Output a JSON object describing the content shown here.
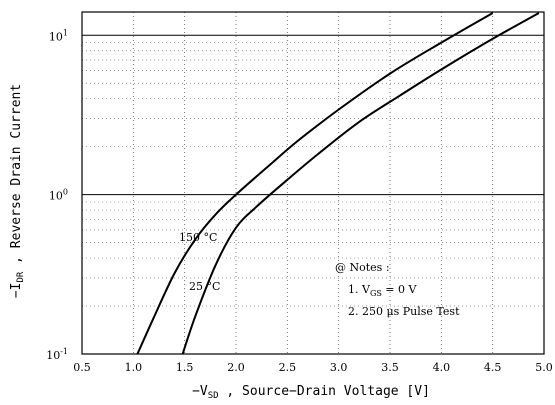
{
  "chart_data": {
    "type": "line",
    "xlabel": {
      "prefix": "−V",
      "sub": "SD",
      "suffix": " , Source−Drain Voltage   [V]"
    },
    "ylabel": {
      "prefix": "−I",
      "sub": "DR",
      "suffix": " , Reverse Drain Current"
    },
    "xlim": [
      0.5,
      5.0
    ],
    "ylim": [
      0.1,
      14
    ],
    "yscale": "log",
    "grid": "dotted",
    "x_ticks": [
      {
        "value": 0.5,
        "label": "0.5"
      },
      {
        "value": 1.0,
        "label": "1.0"
      },
      {
        "value": 1.5,
        "label": "1.5"
      },
      {
        "value": 2.0,
        "label": "2.0"
      },
      {
        "value": 2.5,
        "label": "2.5"
      },
      {
        "value": 3.0,
        "label": "3.0"
      },
      {
        "value": 3.5,
        "label": "3.5"
      },
      {
        "value": 4.0,
        "label": "4.0"
      },
      {
        "value": 4.5,
        "label": "4.5"
      },
      {
        "value": 5.0,
        "label": "5.0"
      }
    ],
    "y_ticks": [
      {
        "value": 0.1,
        "base": "10",
        "exp": "-1"
      },
      {
        "value": 1,
        "base": "10",
        "exp": "0"
      },
      {
        "value": 10,
        "base": "10",
        "exp": "1"
      }
    ],
    "series": [
      {
        "name": "150 °C",
        "x": [
          1.04,
          1.2,
          1.4,
          1.6,
          1.8,
          2.0,
          2.3,
          2.6,
          3.0,
          3.5,
          4.0,
          4.5
        ],
        "y": [
          0.1,
          0.17,
          0.32,
          0.52,
          0.75,
          1.0,
          1.48,
          2.17,
          3.42,
          5.75,
          9.0,
          13.8
        ]
      },
      {
        "name": "25 °C",
        "x": [
          1.48,
          1.6,
          1.8,
          2.0,
          2.2,
          2.5,
          2.8,
          3.2,
          3.6,
          4.0,
          4.5,
          4.95
        ],
        "y": [
          0.1,
          0.17,
          0.36,
          0.62,
          0.84,
          1.24,
          1.8,
          2.86,
          4.2,
          6.1,
          9.5,
          13.8
        ]
      }
    ],
    "notes": {
      "heading": "@ Notes :",
      "line1": {
        "prefix": "1. V",
        "sub": "GS",
        "suffix": " = 0 V"
      },
      "line2": "2. 250 μs Pulse Test"
    }
  }
}
